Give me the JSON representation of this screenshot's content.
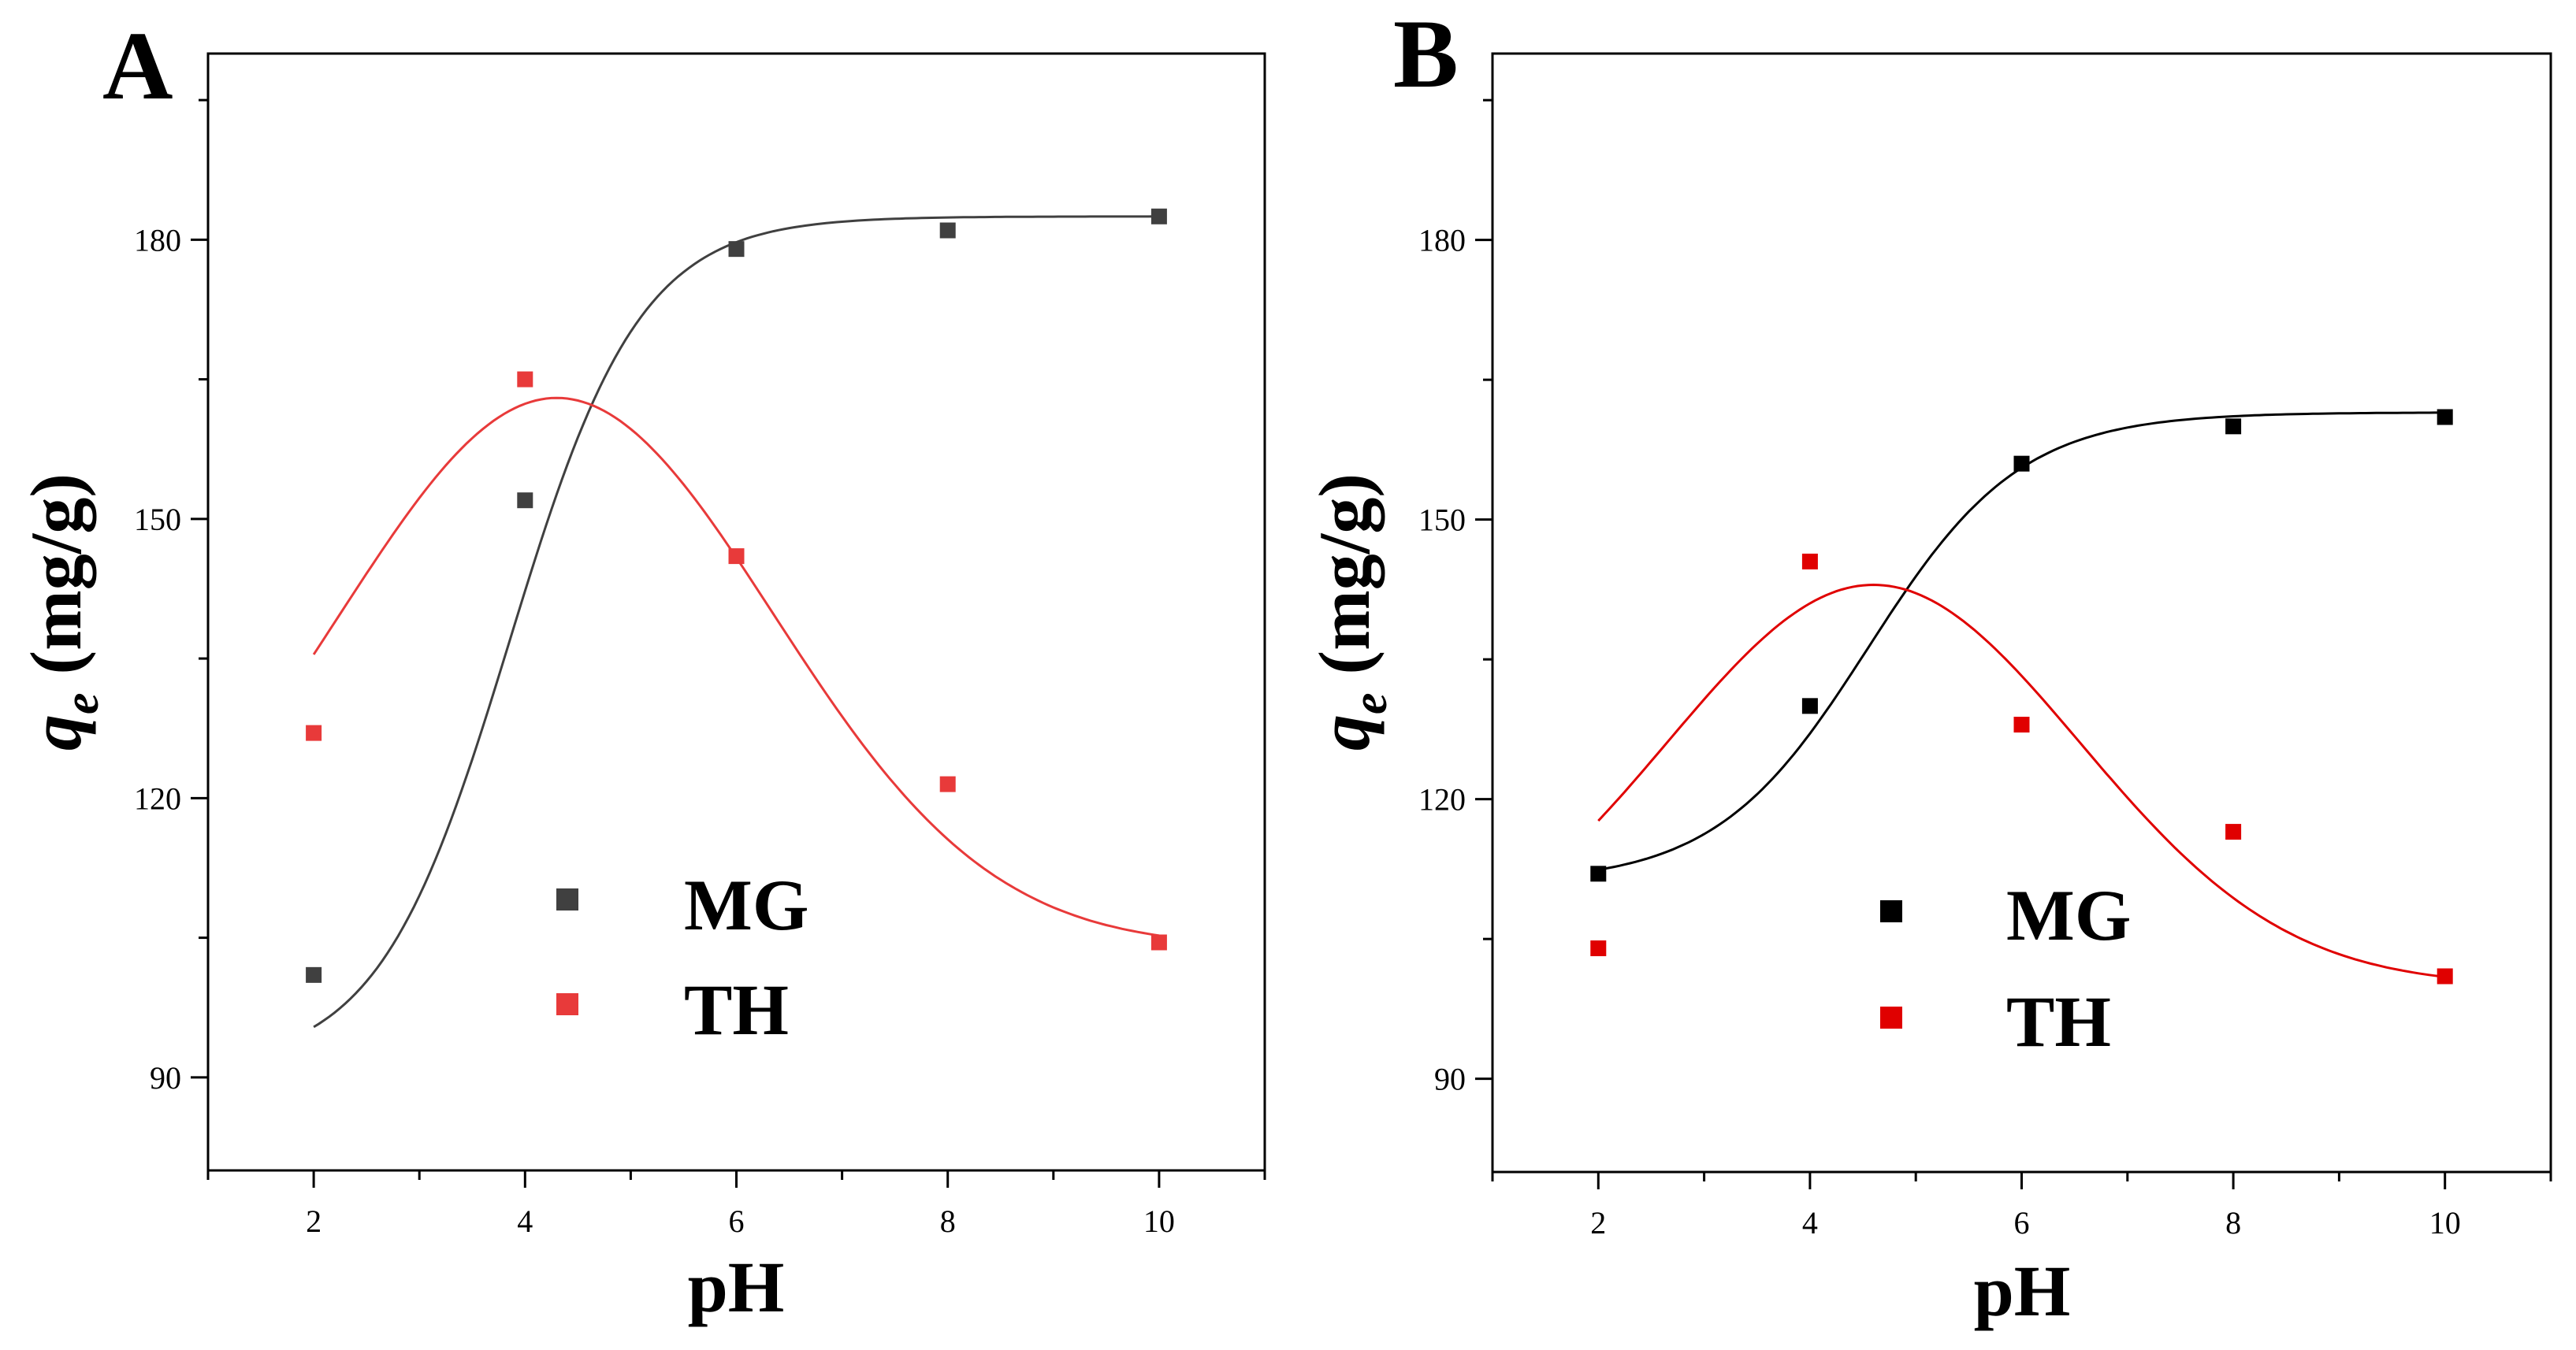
{
  "chart_data": [
    {
      "type": "scatter",
      "panel": "A",
      "xlabel": "pH",
      "ylabel": "qe (mg/g)",
      "ylabel_main": "q",
      "ylabel_sub": "e",
      "ylabel_units": " (mg/g)",
      "xlim": [
        1,
        11
      ],
      "ylim": [
        80,
        200
      ],
      "x_ticks": [
        2,
        4,
        6,
        8,
        10
      ],
      "y_ticks": [
        90,
        120,
        150,
        180
      ],
      "legend_position": "center",
      "series": [
        {
          "name": "MG",
          "color": "#404040",
          "x": [
            2,
            4,
            6,
            8,
            10
          ],
          "y": [
            101,
            152,
            179,
            181,
            182.5
          ],
          "fit": {
            "kind": "logistic",
            "base": 91,
            "amplitude": 91.5,
            "center": 3.85,
            "width": 0.62
          }
        },
        {
          "name": "TH",
          "color": "#e83a3a",
          "x": [
            2,
            4,
            6,
            8,
            10
          ],
          "y": [
            127,
            165,
            146,
            121.5,
            104.5
          ],
          "fit": {
            "kind": "gaussian",
            "base": 104,
            "amplitude": 59,
            "center": 4.3,
            "width": 2.05
          }
        }
      ]
    },
    {
      "type": "scatter",
      "panel": "B",
      "xlabel": "pH",
      "ylabel": "qe (mg/g)",
      "ylabel_main": "q",
      "ylabel_sub": "e",
      "ylabel_units": " (mg/g)",
      "xlim": [
        1,
        11
      ],
      "ylim": [
        80,
        200
      ],
      "x_ticks": [
        2,
        4,
        6,
        8,
        10
      ],
      "y_ticks": [
        90,
        120,
        150,
        180
      ],
      "legend_position": "center",
      "series": [
        {
          "name": "MG",
          "color": "#000000",
          "x": [
            2,
            4,
            6,
            8,
            10
          ],
          "y": [
            112,
            130,
            156,
            160,
            161
          ],
          "fit": {
            "kind": "logistic",
            "base": 111,
            "amplitude": 50.5,
            "center": 4.55,
            "width": 0.72
          }
        },
        {
          "name": "TH",
          "color": "#e00000",
          "x": [
            2,
            4,
            6,
            8,
            10
          ],
          "y": [
            104,
            145.5,
            128,
            116.5,
            101
          ],
          "fit": {
            "kind": "gaussian",
            "base": 100,
            "amplitude": 43,
            "center": 4.6,
            "width": 1.95
          }
        }
      ]
    }
  ]
}
